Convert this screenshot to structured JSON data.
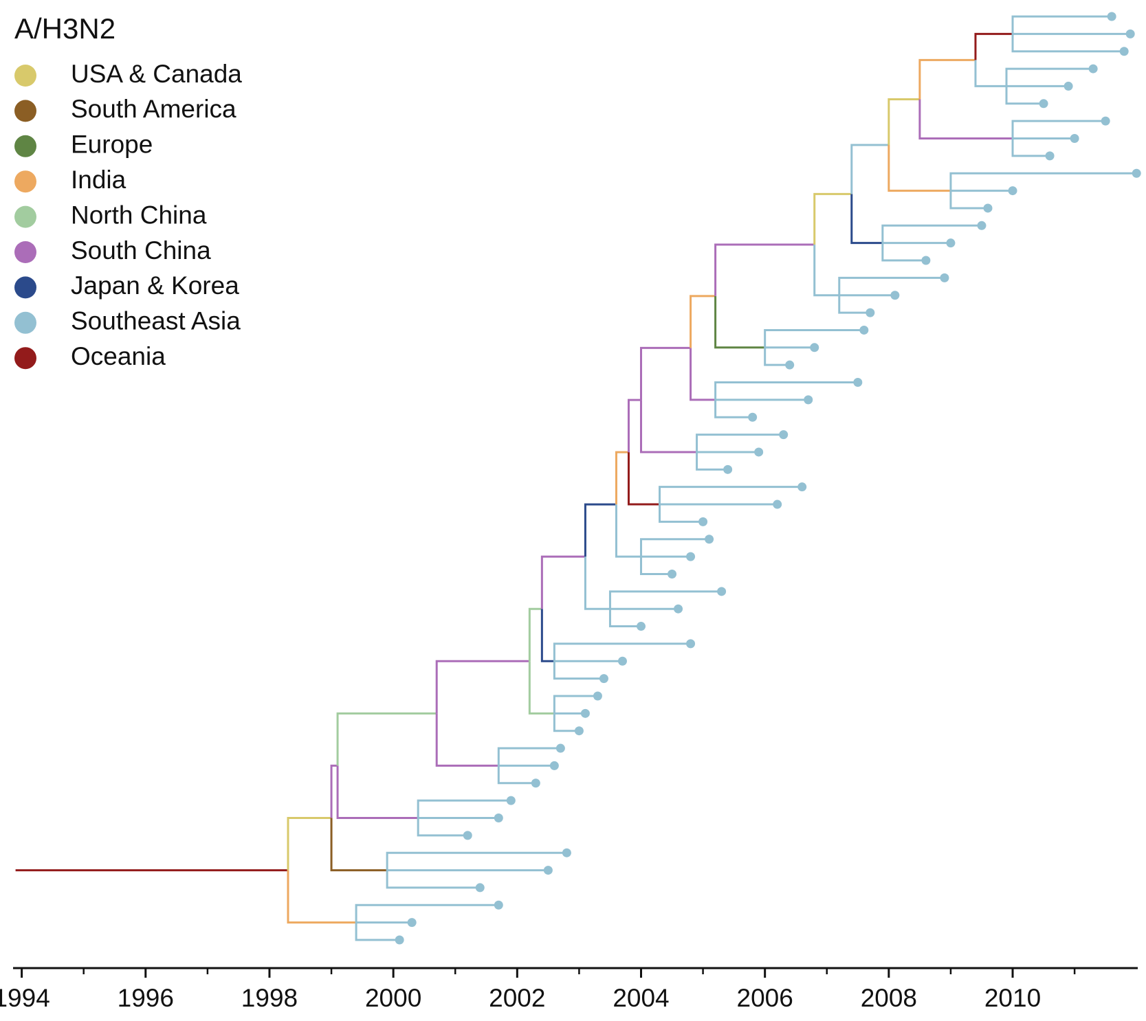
{
  "chart_data": {
    "type": "phylogeny",
    "title": "A/H3N2",
    "legend": [
      {
        "name": "USA & Canada",
        "color": "#d8c96b"
      },
      {
        "name": "South America",
        "color": "#8b5e24"
      },
      {
        "name": "Europe",
        "color": "#5f8544"
      },
      {
        "name": "India",
        "color": "#eda960"
      },
      {
        "name": "North China",
        "color": "#a2cc9f"
      },
      {
        "name": "South China",
        "color": "#ab6db8"
      },
      {
        "name": "Japan & Korea",
        "color": "#2b4a8b"
      },
      {
        "name": "Southeast Asia",
        "color": "#93c0d2"
      },
      {
        "name": "Oceania",
        "color": "#931b1b"
      }
    ],
    "xlim": [
      1993.86,
      2012.02
    ],
    "xticks": [
      1994,
      1996,
      1998,
      2000,
      2002,
      2004,
      2006,
      2008,
      2010
    ],
    "xminor": [
      1995,
      1997,
      1999,
      2001,
      2003,
      2005,
      2007,
      2009,
      2011
    ],
    "nodes": [
      [
        null,
        1993.9,
        "Oceania"
      ],
      [
        0,
        1998.3,
        "Oceania"
      ],
      [
        1,
        1999.4,
        "India"
      ],
      [
        2,
        2000.1,
        "Southeast Asia"
      ],
      [
        2,
        2000.3,
        "Southeast Asia"
      ],
      [
        2,
        2001.7,
        "Southeast Asia"
      ],
      [
        1,
        1999.0,
        "USA & Canada"
      ],
      [
        6,
        1999.9,
        "South America"
      ],
      [
        7,
        2001.4,
        "Southeast Asia"
      ],
      [
        7,
        2002.5,
        "Southeast Asia"
      ],
      [
        7,
        2002.8,
        "Southeast Asia"
      ],
      [
        6,
        1999.1,
        "South China"
      ],
      [
        11,
        2000.4,
        "South China"
      ],
      [
        12,
        2001.2,
        "Southeast Asia"
      ],
      [
        12,
        2001.7,
        "Southeast Asia"
      ],
      [
        12,
        2001.9,
        "Southeast Asia"
      ],
      [
        11,
        2000.7,
        "North China"
      ],
      [
        16,
        2001.7,
        "South China"
      ],
      [
        17,
        2002.3,
        "Southeast Asia"
      ],
      [
        17,
        2002.6,
        "Southeast Asia"
      ],
      [
        17,
        2002.7,
        "Southeast Asia"
      ],
      [
        16,
        2002.2,
        "South China"
      ],
      [
        21,
        2002.6,
        "North China"
      ],
      [
        22,
        2003.0,
        "Southeast Asia"
      ],
      [
        22,
        2003.1,
        "Southeast Asia"
      ],
      [
        22,
        2003.3,
        "Southeast Asia"
      ],
      [
        21,
        2002.4,
        "North China"
      ],
      [
        26,
        2002.6,
        "Japan & Korea"
      ],
      [
        27,
        2003.4,
        "Southeast Asia"
      ],
      [
        27,
        2003.7,
        "Southeast Asia"
      ],
      [
        27,
        2004.8,
        "Southeast Asia"
      ],
      [
        26,
        2003.1,
        "South China"
      ],
      [
        31,
        2003.5,
        "Southeast Asia"
      ],
      [
        32,
        2004.0,
        "Southeast Asia"
      ],
      [
        32,
        2004.6,
        "Southeast Asia"
      ],
      [
        32,
        2005.3,
        "Southeast Asia"
      ],
      [
        31,
        2003.6,
        "Japan & Korea"
      ],
      [
        36,
        2004.0,
        "Southeast Asia"
      ],
      [
        37,
        2004.5,
        "Southeast Asia"
      ],
      [
        37,
        2004.8,
        "Southeast Asia"
      ],
      [
        37,
        2005.1,
        "Southeast Asia"
      ],
      [
        36,
        2003.8,
        "India"
      ],
      [
        41,
        2004.3,
        "Oceania"
      ],
      [
        42,
        2005.0,
        "Southeast Asia"
      ],
      [
        42,
        2006.2,
        "Southeast Asia"
      ],
      [
        42,
        2006.6,
        "Southeast Asia"
      ],
      [
        41,
        2004.0,
        "South China"
      ],
      [
        46,
        2004.9,
        "South China"
      ],
      [
        47,
        2005.4,
        "Southeast Asia"
      ],
      [
        47,
        2005.9,
        "Southeast Asia"
      ],
      [
        47,
        2006.3,
        "Southeast Asia"
      ],
      [
        46,
        2004.8,
        "South China"
      ],
      [
        51,
        2005.2,
        "South China"
      ],
      [
        52,
        2005.8,
        "Southeast Asia"
      ],
      [
        52,
        2006.7,
        "Southeast Asia"
      ],
      [
        52,
        2007.5,
        "Southeast Asia"
      ],
      [
        51,
        2005.2,
        "India"
      ],
      [
        56,
        2006.0,
        "Europe"
      ],
      [
        57,
        2006.4,
        "Southeast Asia"
      ],
      [
        57,
        2006.8,
        "Southeast Asia"
      ],
      [
        57,
        2007.6,
        "Southeast Asia"
      ],
      [
        56,
        2006.8,
        "South China"
      ],
      [
        61,
        2007.2,
        "Southeast Asia"
      ],
      [
        62,
        2007.7,
        "Southeast Asia"
      ],
      [
        62,
        2008.1,
        "Southeast Asia"
      ],
      [
        62,
        2008.9,
        "Southeast Asia"
      ],
      [
        61,
        2007.4,
        "USA & Canada"
      ],
      [
        66,
        2007.9,
        "Japan & Korea"
      ],
      [
        67,
        2008.6,
        "Southeast Asia"
      ],
      [
        67,
        2009.0,
        "Southeast Asia"
      ],
      [
        67,
        2009.5,
        "Southeast Asia"
      ],
      [
        66,
        2008.0,
        "Southeast Asia"
      ],
      [
        71,
        2009.0,
        "India"
      ],
      [
        72,
        2009.6,
        "Southeast Asia"
      ],
      [
        72,
        2010.0,
        "Southeast Asia"
      ],
      [
        72,
        2012.0,
        "Southeast Asia"
      ],
      [
        71,
        2008.5,
        "USA & Canada"
      ],
      [
        76,
        2010.0,
        "South China"
      ],
      [
        77,
        2010.6,
        "Southeast Asia"
      ],
      [
        77,
        2011.0,
        "Southeast Asia"
      ],
      [
        77,
        2011.5,
        "Southeast Asia"
      ],
      [
        76,
        2009.4,
        "India"
      ],
      [
        81,
        2009.9,
        "Southeast Asia"
      ],
      [
        82,
        2010.5,
        "Southeast Asia"
      ],
      [
        82,
        2010.9,
        "Southeast Asia"
      ],
      [
        82,
        2011.3,
        "Southeast Asia"
      ],
      [
        81,
        2010.0,
        "Oceania"
      ],
      [
        86,
        2011.8,
        "Southeast Asia"
      ],
      [
        86,
        2011.9,
        "Southeast Asia"
      ],
      [
        86,
        2011.6,
        "Southeast Asia"
      ]
    ]
  }
}
